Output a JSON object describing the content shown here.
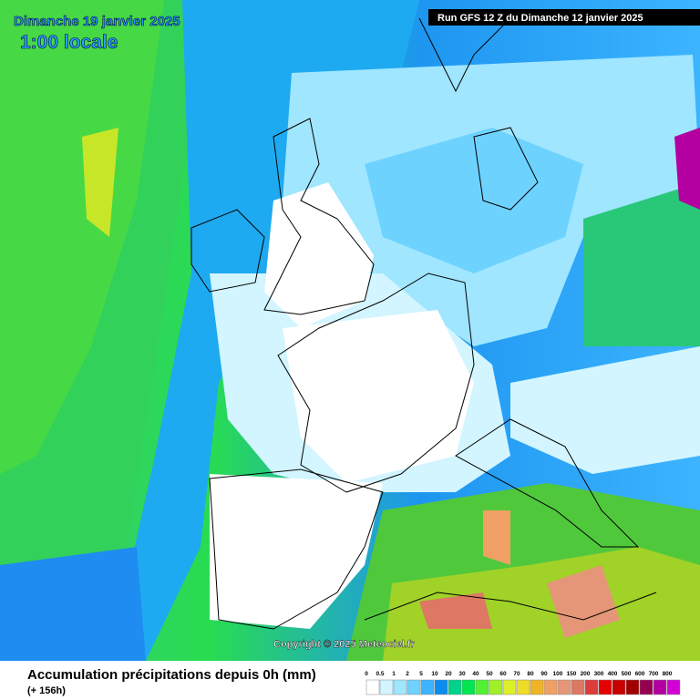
{
  "header": {
    "date": "Dimanche 19 janvier 2025",
    "time": "1:00 locale",
    "run": "Run GFS 12 Z du Dimanche 12 janvier 2025"
  },
  "copyright": "Copyright © 2025 Meteociel.fr",
  "footer": {
    "title": "Accumulation précipitations depuis 0h (mm)",
    "subtitle": "(+ 156h)"
  },
  "legend": [
    {
      "label": "0",
      "color": "#ffffff"
    },
    {
      "label": "0.5",
      "color": "#d2f5ff"
    },
    {
      "label": "1",
      "color": "#a0e6ff"
    },
    {
      "label": "2",
      "color": "#6ed2ff"
    },
    {
      "label": "5",
      "color": "#3cb4ff"
    },
    {
      "label": "10",
      "color": "#0a8cf0"
    },
    {
      "label": "20",
      "color": "#00d28c"
    },
    {
      "label": "30",
      "color": "#00e650"
    },
    {
      "label": "40",
      "color": "#50f032"
    },
    {
      "label": "50",
      "color": "#a0f028"
    },
    {
      "label": "60",
      "color": "#dcf028"
    },
    {
      "label": "70",
      "color": "#f0dc28"
    },
    {
      "label": "80",
      "color": "#f0b428"
    },
    {
      "label": "90",
      "color": "#f0a064"
    },
    {
      "label": "100",
      "color": "#e69678"
    },
    {
      "label": "150",
      "color": "#dc7864"
    },
    {
      "label": "200",
      "color": "#dc3c3c"
    },
    {
      "label": "300",
      "color": "#e60000"
    },
    {
      "label": "400",
      "color": "#c80000"
    },
    {
      "label": "500",
      "color": "#a00000"
    },
    {
      "label": "600",
      "color": "#960050"
    },
    {
      "label": "700",
      "color": "#b400a0"
    },
    {
      "label": "800",
      "color": "#d200d2"
    }
  ]
}
